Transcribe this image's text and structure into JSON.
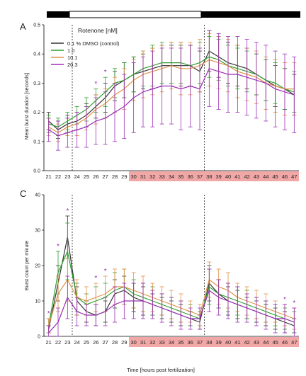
{
  "figure": {
    "panel_a_letter": "A",
    "panel_c_letter": "C",
    "xlabel": "Time [hours post fertilization]"
  },
  "colors": {
    "control": "#333333",
    "r1": "#2e9e2e",
    "r10": "#e0914a",
    "r20": "#9b2fb5",
    "highlight": "#f2a7a7",
    "light_bar": "#ffffff",
    "dark_bar": "#000000"
  },
  "chart_data": [
    {
      "type": "line",
      "panel": "A",
      "title": "",
      "xlabel": "Time [hours post fertilization]",
      "ylabel": "Mean burst duration [seconds]",
      "ylim": [
        0.0,
        0.5
      ],
      "yticks": [
        "0.0",
        "0.1",
        "0.2",
        "0.3",
        "0.4",
        "0.5"
      ],
      "x": [
        "21",
        "22",
        "23",
        "24",
        "25",
        "26",
        "27",
        "28",
        "29",
        "30",
        "31",
        "32",
        "33",
        "34",
        "35",
        "36",
        "37",
        "38",
        "39",
        "40",
        "41",
        "42",
        "43",
        "44",
        "45",
        "46",
        "47"
      ],
      "highlighted_x": [
        "30",
        "31",
        "32",
        "33",
        "34",
        "35",
        "36",
        "37",
        "38",
        "39",
        "40",
        "41",
        "42",
        "43",
        "44",
        "45",
        "46",
        "47"
      ],
      "dashed_vlines_x": [
        "23.5",
        "37.5"
      ],
      "light_period": "23.5-37.5",
      "legend_title": "Rotenone [nM]",
      "legend_position": "top-left",
      "significance_markers_x": [
        "26",
        "27"
      ],
      "series": [
        {
          "name": "0.1 % DMSO (control)",
          "color_key": "control",
          "values": [
            0.17,
            0.14,
            0.16,
            0.17,
            0.19,
            0.22,
            0.25,
            0.29,
            0.31,
            0.33,
            0.34,
            0.35,
            0.36,
            0.36,
            0.36,
            0.36,
            0.34,
            0.41,
            0.39,
            0.37,
            0.36,
            0.35,
            0.33,
            0.31,
            0.29,
            0.28,
            0.26
          ],
          "err": [
            0.03,
            0.03,
            0.03,
            0.03,
            0.04,
            0.04,
            0.05,
            0.05,
            0.06,
            0.06,
            0.06,
            0.07,
            0.07,
            0.07,
            0.07,
            0.07,
            0.07,
            0.07,
            0.07,
            0.07,
            0.07,
            0.07,
            0.07,
            0.07,
            0.07,
            0.07,
            0.07
          ]
        },
        {
          "name": "1.0",
          "color_key": "r1",
          "values": [
            0.16,
            0.15,
            0.17,
            0.19,
            0.21,
            0.24,
            0.27,
            0.3,
            0.31,
            0.33,
            0.35,
            0.36,
            0.37,
            0.37,
            0.37,
            0.36,
            0.37,
            0.39,
            0.38,
            0.36,
            0.35,
            0.34,
            0.33,
            0.31,
            0.3,
            0.28,
            0.27
          ],
          "err": [
            0.03,
            0.03,
            0.03,
            0.03,
            0.04,
            0.04,
            0.05,
            0.05,
            0.06,
            0.06,
            0.06,
            0.07,
            0.07,
            0.07,
            0.07,
            0.07,
            0.07,
            0.07,
            0.07,
            0.07,
            0.07,
            0.07,
            0.07,
            0.07,
            0.07,
            0.07,
            0.07
          ]
        },
        {
          "name": "10.1",
          "color_key": "r10",
          "values": [
            0.15,
            0.13,
            0.15,
            0.16,
            0.18,
            0.21,
            0.23,
            0.26,
            0.28,
            0.31,
            0.33,
            0.34,
            0.35,
            0.36,
            0.35,
            0.35,
            0.36,
            0.38,
            0.37,
            0.36,
            0.34,
            0.33,
            0.32,
            0.3,
            0.29,
            0.28,
            0.28
          ],
          "err": [
            0.03,
            0.03,
            0.03,
            0.04,
            0.04,
            0.05,
            0.05,
            0.06,
            0.07,
            0.07,
            0.08,
            0.08,
            0.08,
            0.08,
            0.09,
            0.09,
            0.09,
            0.09,
            0.09,
            0.09,
            0.09,
            0.09,
            0.09,
            0.09,
            0.09,
            0.09,
            0.09
          ]
        },
        {
          "name": "20.3",
          "color_key": "r20",
          "values": [
            0.14,
            0.12,
            0.13,
            0.14,
            0.15,
            0.17,
            0.18,
            0.2,
            0.22,
            0.25,
            0.27,
            0.28,
            0.29,
            0.29,
            0.28,
            0.29,
            0.28,
            0.35,
            0.34,
            0.33,
            0.33,
            0.32,
            0.31,
            0.3,
            0.28,
            0.27,
            0.26
          ],
          "err": [
            0.04,
            0.05,
            0.05,
            0.06,
            0.07,
            0.08,
            0.09,
            0.1,
            0.11,
            0.12,
            0.12,
            0.13,
            0.13,
            0.13,
            0.14,
            0.14,
            0.14,
            0.13,
            0.13,
            0.13,
            0.13,
            0.13,
            0.13,
            0.13,
            0.13,
            0.13,
            0.13
          ]
        }
      ]
    },
    {
      "type": "line",
      "panel": "C",
      "title": "",
      "xlabel": "Time [hours post fertilization]",
      "ylabel": "Burst count per minute",
      "ylim": [
        0,
        40
      ],
      "yticks": [
        "0",
        "10",
        "20",
        "30",
        "40"
      ],
      "x": [
        "21",
        "22",
        "23",
        "24",
        "25",
        "26",
        "27",
        "28",
        "29",
        "30",
        "31",
        "32",
        "33",
        "34",
        "35",
        "36",
        "37",
        "38",
        "39",
        "40",
        "41",
        "42",
        "43",
        "44",
        "45",
        "46",
        "47"
      ],
      "highlighted_x": [
        "30",
        "31",
        "32",
        "33",
        "34",
        "35",
        "36",
        "37",
        "38",
        "39",
        "40",
        "41",
        "42",
        "43",
        "44",
        "45",
        "46",
        "47"
      ],
      "dashed_vlines_x": [
        "23.5",
        "37.5"
      ],
      "significance_markers_x": [
        "21",
        "22",
        "23",
        "26",
        "27",
        "46",
        "47"
      ],
      "series": [
        {
          "name": "0.1 % DMSO (control)",
          "color_key": "control",
          "values": [
            2,
            15,
            28,
            10,
            7,
            6,
            7,
            12,
            13,
            11,
            10,
            9,
            8,
            7,
            6,
            5,
            4,
            15,
            12,
            10,
            9,
            8,
            7,
            6,
            5,
            4,
            3
          ],
          "err": [
            1,
            5,
            6,
            4,
            3,
            3,
            3,
            4,
            4,
            4,
            4,
            3,
            3,
            3,
            3,
            2,
            2,
            5,
            4,
            4,
            4,
            3,
            3,
            3,
            3,
            3,
            2
          ]
        },
        {
          "name": "1.0",
          "color_key": "r1",
          "values": [
            3,
            18,
            24,
            11,
            9,
            10,
            11,
            13,
            14,
            12,
            11,
            10,
            9,
            8,
            7,
            6,
            5,
            14,
            12,
            11,
            10,
            9,
            8,
            7,
            6,
            5,
            4
          ],
          "err": [
            2,
            6,
            8,
            4,
            3,
            4,
            4,
            5,
            5,
            4,
            4,
            4,
            3,
            3,
            3,
            3,
            2,
            5,
            4,
            4,
            4,
            4,
            3,
            3,
            3,
            3,
            3
          ]
        },
        {
          "name": "10.1",
          "color_key": "r10",
          "values": [
            3,
            12,
            16,
            11,
            10,
            11,
            12,
            14,
            14,
            13,
            12,
            11,
            10,
            9,
            8,
            7,
            6,
            16,
            14,
            13,
            11,
            10,
            9,
            8,
            7,
            6,
            5
          ],
          "err": [
            2,
            5,
            6,
            5,
            4,
            4,
            5,
            5,
            5,
            5,
            5,
            4,
            4,
            4,
            4,
            3,
            3,
            5,
            5,
            5,
            4,
            4,
            4,
            4,
            3,
            3,
            3
          ]
        },
        {
          "name": "20.3",
          "color_key": "r20",
          "values": [
            1,
            4,
            11,
            7,
            6,
            6,
            7,
            9,
            10,
            10,
            10,
            9,
            8,
            7,
            6,
            5,
            5,
            13,
            11,
            10,
            9,
            8,
            7,
            6,
            5,
            5,
            4
          ],
          "err": [
            2,
            4,
            6,
            4,
            3,
            3,
            4,
            5,
            5,
            5,
            5,
            4,
            4,
            4,
            4,
            3,
            3,
            6,
            5,
            5,
            5,
            4,
            4,
            4,
            4,
            4,
            4
          ]
        }
      ]
    }
  ]
}
